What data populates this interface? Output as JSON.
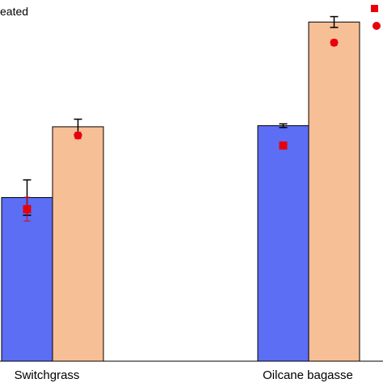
{
  "chart_data": {
    "type": "bar",
    "categories": [
      "Switchgrass",
      "Oilcane bagasse"
    ],
    "ylim": [
      0,
      100
    ],
    "series": [
      {
        "color": "#5b6ef4",
        "values": [
          45.3,
          65.2
        ],
        "error": [
          4.9,
          0.5
        ],
        "marker": "square",
        "marker_color": "#e8000b",
        "marker_values": [
          42.1,
          59.7
        ],
        "marker_error": [
          3.3,
          0
        ]
      },
      {
        "color": "#f7bf96",
        "values": [
          64.9,
          93.9
        ],
        "error": [
          2.1,
          1.5
        ],
        "marker": "circle",
        "marker_color": "#e8000b",
        "marker_values": [
          62.5,
          88.2
        ],
        "marker_error": [
          0.9,
          0.8
        ]
      }
    ],
    "legend": {
      "position": "top",
      "entries": [
        "eated",
        "",
        "",
        ""
      ]
    },
    "grid": false
  }
}
